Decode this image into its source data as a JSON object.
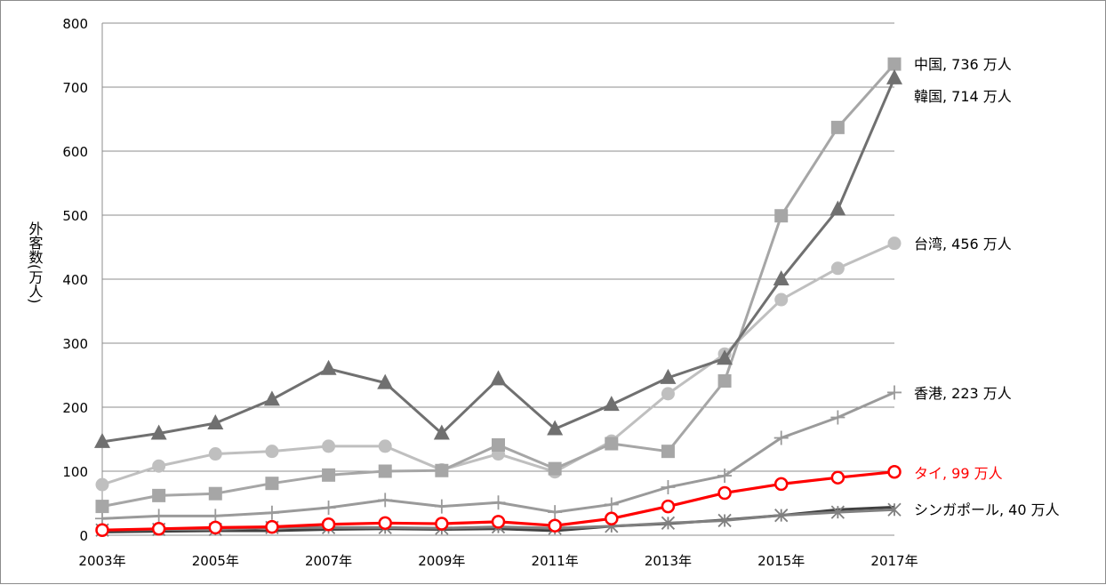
{
  "chart_data": {
    "type": "line",
    "ylabel": "外客数(万人)",
    "ylim": [
      0,
      800
    ],
    "yticks": [
      "0",
      "100",
      "200",
      "300",
      "400",
      "500",
      "600",
      "700",
      "800"
    ],
    "x": [
      2003,
      2004,
      2005,
      2006,
      2007,
      2008,
      2009,
      2010,
      2011,
      2012,
      2013,
      2014,
      2015,
      2016,
      2017
    ],
    "xtick_labels": [
      "2003年",
      "2005年",
      "2007年",
      "2009年",
      "2011年",
      "2013年",
      "2015年",
      "2017年"
    ],
    "xtick_years": [
      2003,
      2005,
      2007,
      2009,
      2011,
      2013,
      2015,
      2017
    ],
    "grid": true,
    "series": [
      {
        "key": "china",
        "label": "中国, 736 万人",
        "color": "#a6a6a6",
        "marker": "square",
        "values": [
          45,
          62,
          65,
          81,
          94,
          100,
          101,
          141,
          104,
          143,
          131,
          241,
          499,
          637,
          736
        ]
      },
      {
        "key": "korea",
        "label": "韓国, 714 万人",
        "color": "#707070",
        "marker": "triangle",
        "values": [
          146,
          159,
          175,
          212,
          260,
          238,
          159,
          244,
          166,
          204,
          246,
          276,
          400,
          509,
          714
        ]
      },
      {
        "key": "taiwan",
        "label": "台湾, 456 万人",
        "color": "#bfbfbf",
        "marker": "circle",
        "values": [
          79,
          108,
          127,
          131,
          139,
          139,
          102,
          127,
          99,
          147,
          221,
          283,
          368,
          417,
          456
        ]
      },
      {
        "key": "hongkong",
        "label": "香港, 223 万人",
        "color": "#9a9a9a",
        "marker": "plus",
        "values": [
          26,
          30,
          30,
          35,
          43,
          55,
          45,
          51,
          36,
          48,
          75,
          93,
          152,
          184,
          223
        ]
      },
      {
        "key": "thailand",
        "label": "タイ, 99 万人",
        "color": "#ff0000",
        "marker": "open-circle",
        "values": [
          8,
          10,
          12,
          13,
          17,
          19,
          18,
          21,
          15,
          26,
          45,
          66,
          80,
          90,
          99
        ]
      },
      {
        "key": "singapore",
        "label": "シンガポール, 40 万人",
        "color": "#808080",
        "marker": "x",
        "values": [
          8,
          9,
          9,
          12,
          12,
          12,
          11,
          13,
          11,
          14,
          19,
          23,
          31,
          36,
          40
        ]
      }
    ],
    "aux_series": [
      {
        "key": "aux_dark",
        "color": "#404040",
        "values": [
          5,
          6,
          7,
          7,
          9,
          10,
          9,
          10,
          7,
          14,
          18,
          24,
          31,
          40,
          44
        ]
      }
    ]
  }
}
